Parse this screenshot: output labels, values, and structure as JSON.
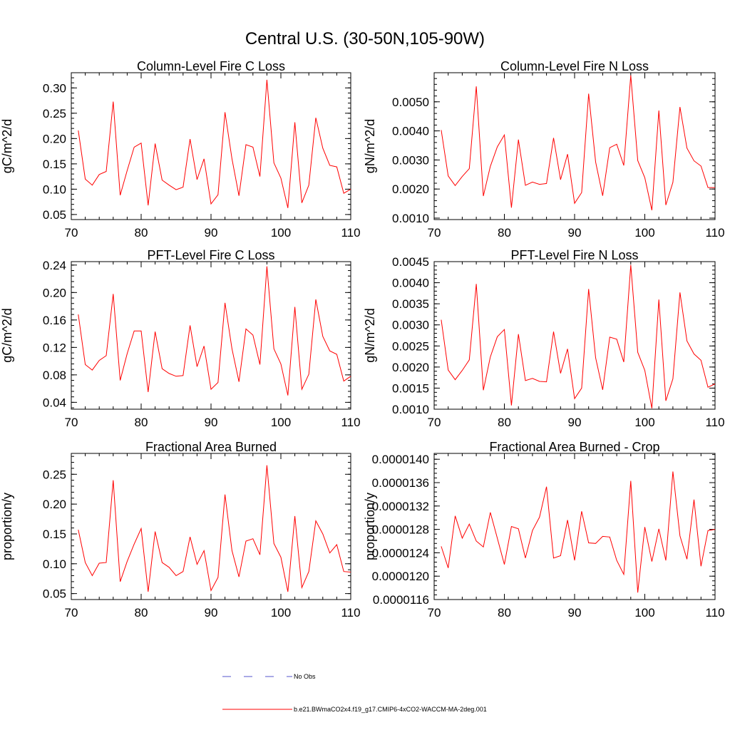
{
  "figure": {
    "title": "Central U.S. (30-50N,105-90W)"
  },
  "legend": {
    "obs_label": "No Obs",
    "model_label": "b.e21.BWmaCO2x4.f19_g17.CMIP6-4xCO2-WACCM-MA-2deg.001",
    "obs_color": "#5555cc",
    "model_color": "#ff0000"
  },
  "chart_data": [
    {
      "id": "col-fire-c",
      "type": "line",
      "title": "Column-Level Fire C Loss",
      "xlabel": "",
      "ylabel": "gC/m^2/d",
      "xlim": [
        70,
        110
      ],
      "ylim": [
        0.04,
        0.33
      ],
      "xticks": [
        70,
        80,
        90,
        100,
        110
      ],
      "yticks": [
        0.05,
        0.1,
        0.15,
        0.2,
        0.25,
        0.3
      ],
      "ytick_labels": [
        "0.05",
        "0.10",
        "0.15",
        "0.20",
        "0.25",
        "0.30"
      ],
      "x": [
        71,
        72,
        73,
        74,
        75,
        76,
        77,
        78,
        79,
        80,
        81,
        82,
        83,
        84,
        85,
        86,
        87,
        88,
        89,
        90,
        91,
        92,
        93,
        94,
        95,
        96,
        97,
        98,
        99,
        100,
        101,
        102,
        103,
        104,
        105,
        106,
        107,
        108,
        109,
        110
      ],
      "series": [
        {
          "name": "b.e21.BWmaCO2x4.f19_g17.CMIP6-4xCO2-WACCM-MA-2deg.001",
          "values": [
            0.216,
            0.12,
            0.108,
            0.129,
            0.135,
            0.273,
            0.088,
            0.137,
            0.183,
            0.191,
            0.068,
            0.19,
            0.118,
            0.108,
            0.099,
            0.104,
            0.199,
            0.119,
            0.16,
            0.071,
            0.089,
            0.252,
            0.16,
            0.087,
            0.188,
            0.183,
            0.125,
            0.316,
            0.152,
            0.122,
            0.063,
            0.232,
            0.073,
            0.108,
            0.241,
            0.181,
            0.147,
            0.144,
            0.092,
            0.1
          ]
        }
      ]
    },
    {
      "id": "col-fire-n",
      "type": "line",
      "title": "Column-Level Fire N Loss",
      "xlabel": "",
      "ylabel": "gN/m^2/d",
      "xlim": [
        70,
        110
      ],
      "ylim": [
        0.00095,
        0.006
      ],
      "xticks": [
        70,
        80,
        90,
        100,
        110
      ],
      "yticks": [
        0.001,
        0.002,
        0.003,
        0.004,
        0.005
      ],
      "ytick_labels": [
        "0.0010",
        "0.0020",
        "0.0030",
        "0.0040",
        "0.0050"
      ],
      "x": [
        71,
        72,
        73,
        74,
        75,
        76,
        77,
        78,
        79,
        80,
        81,
        82,
        83,
        84,
        85,
        86,
        87,
        88,
        89,
        90,
        91,
        92,
        93,
        94,
        95,
        96,
        97,
        98,
        99,
        100,
        101,
        102,
        103,
        104,
        105,
        106,
        107,
        108,
        109,
        110
      ],
      "series": [
        {
          "name": "b.e21.BWmaCO2x4.f19_g17.CMIP6-4xCO2-WACCM-MA-2deg.001",
          "values": [
            0.00403,
            0.00245,
            0.00212,
            0.00243,
            0.0027,
            0.00553,
            0.00176,
            0.00278,
            0.00345,
            0.00386,
            0.00136,
            0.0037,
            0.00213,
            0.00224,
            0.00216,
            0.00219,
            0.00376,
            0.00232,
            0.0032,
            0.00151,
            0.00188,
            0.00528,
            0.00293,
            0.00177,
            0.00342,
            0.00354,
            0.00281,
            0.00591,
            0.00298,
            0.00239,
            0.00127,
            0.0047,
            0.00145,
            0.00223,
            0.00482,
            0.00341,
            0.00297,
            0.00279,
            0.00205,
            0.00205
          ]
        }
      ]
    },
    {
      "id": "pft-fire-c",
      "type": "line",
      "title": "PFT-Level Fire C Loss",
      "xlabel": "",
      "ylabel": "gC/m^2/d",
      "xlim": [
        70,
        110
      ],
      "ylim": [
        0.03,
        0.245
      ],
      "xticks": [
        70,
        80,
        90,
        100,
        110
      ],
      "yticks": [
        0.04,
        0.08,
        0.12,
        0.16,
        0.2,
        0.24
      ],
      "ytick_labels": [
        "0.04",
        "0.08",
        "0.12",
        "0.16",
        "0.20",
        "0.24"
      ],
      "x": [
        71,
        72,
        73,
        74,
        75,
        76,
        77,
        78,
        79,
        80,
        81,
        82,
        83,
        84,
        85,
        86,
        87,
        88,
        89,
        90,
        91,
        92,
        93,
        94,
        95,
        96,
        97,
        98,
        99,
        100,
        101,
        102,
        103,
        104,
        105,
        106,
        107,
        108,
        109,
        110
      ],
      "series": [
        {
          "name": "b.e21.BWmaCO2x4.f19_g17.CMIP6-4xCO2-WACCM-MA-2deg.001",
          "values": [
            0.168,
            0.095,
            0.087,
            0.101,
            0.108,
            0.198,
            0.072,
            0.111,
            0.144,
            0.144,
            0.055,
            0.143,
            0.089,
            0.082,
            0.078,
            0.079,
            0.152,
            0.092,
            0.122,
            0.059,
            0.069,
            0.185,
            0.118,
            0.07,
            0.147,
            0.138,
            0.095,
            0.238,
            0.118,
            0.096,
            0.05,
            0.179,
            0.059,
            0.081,
            0.19,
            0.136,
            0.115,
            0.11,
            0.071,
            0.078
          ]
        }
      ]
    },
    {
      "id": "pft-fire-n",
      "type": "line",
      "title": "PFT-Level Fire N Loss",
      "xlabel": "",
      "ylabel": "gN/m^2/d",
      "xlim": [
        70,
        110
      ],
      "ylim": [
        0.001,
        0.0045
      ],
      "xticks": [
        70,
        80,
        90,
        100,
        110
      ],
      "yticks": [
        0.001,
        0.0015,
        0.002,
        0.0025,
        0.003,
        0.0035,
        0.004,
        0.0045
      ],
      "ytick_labels": [
        "0.0010",
        "0.0015",
        "0.0020",
        "0.0025",
        "0.0030",
        "0.0035",
        "0.0040",
        "0.0045"
      ],
      "x": [
        71,
        72,
        73,
        74,
        75,
        76,
        77,
        78,
        79,
        80,
        81,
        82,
        83,
        84,
        85,
        86,
        87,
        88,
        89,
        90,
        91,
        92,
        93,
        94,
        95,
        96,
        97,
        98,
        99,
        100,
        101,
        102,
        103,
        104,
        105,
        106,
        107,
        108,
        109,
        110
      ],
      "series": [
        {
          "name": "b.e21.BWmaCO2x4.f19_g17.CMIP6-4xCO2-WACCM-MA-2deg.001",
          "values": [
            0.00312,
            0.00193,
            0.0017,
            0.00192,
            0.00217,
            0.00397,
            0.00145,
            0.00224,
            0.00272,
            0.00289,
            0.00109,
            0.00278,
            0.00168,
            0.00173,
            0.00166,
            0.00165,
            0.00284,
            0.00185,
            0.00243,
            0.00125,
            0.0015,
            0.00385,
            0.00222,
            0.00146,
            0.00271,
            0.00266,
            0.00212,
            0.00442,
            0.00235,
            0.00192,
            0.00102,
            0.0036,
            0.0012,
            0.00172,
            0.00377,
            0.00262,
            0.00231,
            0.00216,
            0.00152,
            0.0016
          ]
        }
      ]
    },
    {
      "id": "area-burned",
      "type": "line",
      "title": "Fractional Area Burned",
      "xlabel": "",
      "ylabel": "proportion/y",
      "xlim": [
        70,
        110
      ],
      "ylim": [
        0.04,
        0.285
      ],
      "xticks": [
        70,
        80,
        90,
        100,
        110
      ],
      "yticks": [
        0.05,
        0.1,
        0.15,
        0.2,
        0.25
      ],
      "ytick_labels": [
        "0.05",
        "0.10",
        "0.15",
        "0.20",
        "0.25"
      ],
      "x": [
        71,
        72,
        73,
        74,
        75,
        76,
        77,
        78,
        79,
        80,
        81,
        82,
        83,
        84,
        85,
        86,
        87,
        88,
        89,
        90,
        91,
        92,
        93,
        94,
        95,
        96,
        97,
        98,
        99,
        100,
        101,
        102,
        103,
        104,
        105,
        106,
        107,
        108,
        109,
        110
      ],
      "series": [
        {
          "name": "b.e21.BWmaCO2x4.f19_g17.CMIP6-4xCO2-WACCM-MA-2deg.001",
          "values": [
            0.157,
            0.102,
            0.08,
            0.101,
            0.102,
            0.24,
            0.07,
            0.104,
            0.133,
            0.159,
            0.053,
            0.154,
            0.102,
            0.094,
            0.08,
            0.087,
            0.145,
            0.099,
            0.122,
            0.055,
            0.077,
            0.216,
            0.122,
            0.078,
            0.138,
            0.142,
            0.115,
            0.265,
            0.134,
            0.111,
            0.053,
            0.18,
            0.06,
            0.087,
            0.172,
            0.15,
            0.118,
            0.132,
            0.087,
            0.086
          ]
        }
      ]
    },
    {
      "id": "area-burned-crop",
      "type": "line",
      "title": "Fractional Area Burned - Crop",
      "xlabel": "",
      "ylabel": "proportion/y",
      "xlim": [
        70,
        110
      ],
      "ylim": [
        1.16e-05,
        1.41e-05
      ],
      "xticks": [
        70,
        80,
        90,
        100,
        110
      ],
      "yticks": [
        1.16e-05,
        1.2e-05,
        1.24e-05,
        1.28e-05,
        1.32e-05,
        1.36e-05,
        1.4e-05
      ],
      "ytick_labels": [
        "0.0000116",
        "0.0000120",
        "0.0000124",
        "0.0000128",
        "0.0000132",
        "0.0000136",
        "0.0000140"
      ],
      "x": [
        71,
        72,
        73,
        74,
        75,
        76,
        77,
        78,
        79,
        80,
        81,
        82,
        83,
        84,
        85,
        86,
        87,
        88,
        89,
        90,
        91,
        92,
        93,
        94,
        95,
        96,
        97,
        98,
        99,
        100,
        101,
        102,
        103,
        104,
        105,
        106,
        107,
        108,
        109,
        110
      ],
      "series": [
        {
          "name": "b.e21.BWmaCO2x4.f19_g17.CMIP6-4xCO2-WACCM-MA-2deg.001",
          "values": [
            1.251e-05,
            1.214e-05,
            1.303e-05,
            1.265e-05,
            1.289e-05,
            1.26e-05,
            1.25e-05,
            1.309e-05,
            1.265e-05,
            1.22e-05,
            1.285e-05,
            1.281e-05,
            1.231e-05,
            1.278e-05,
            1.301e-05,
            1.353e-05,
            1.231e-05,
            1.235e-05,
            1.296e-05,
            1.227e-05,
            1.311e-05,
            1.257e-05,
            1.256e-05,
            1.268e-05,
            1.267e-05,
            1.227e-05,
            1.203e-05,
            1.363e-05,
            1.172e-05,
            1.284e-05,
            1.225e-05,
            1.281e-05,
            1.227e-05,
            1.379e-05,
            1.269e-05,
            1.229e-05,
            1.331e-05,
            1.217e-05,
            1.278e-05,
            1.28e-05
          ]
        }
      ]
    }
  ]
}
